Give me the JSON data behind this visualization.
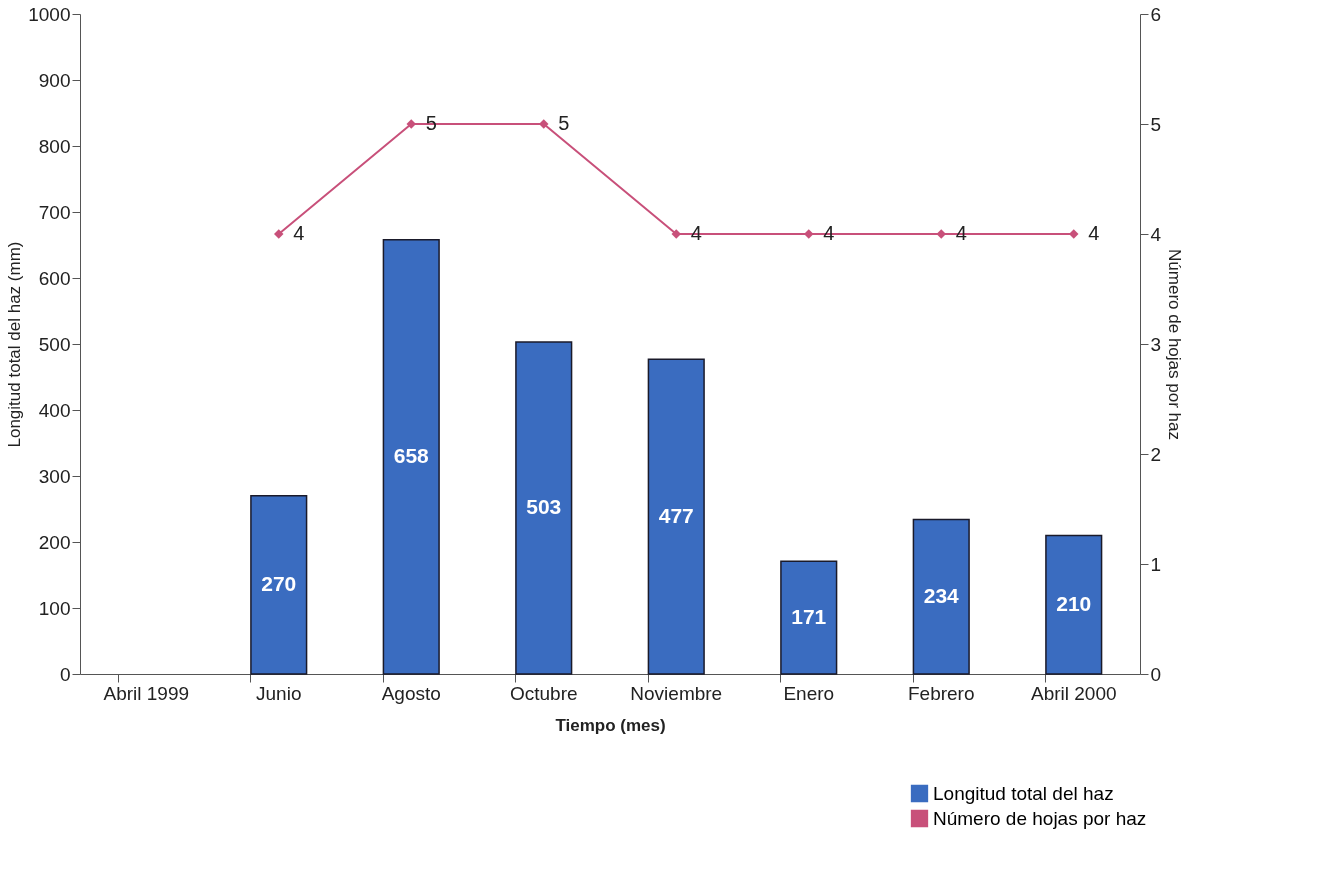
{
  "chart_data": {
    "type": "bar",
    "xlabel": "Tiempo (mes)",
    "ylabel": "Longitud total del haz (mm)",
    "y2label": "Número de hojas por haz",
    "categories": [
      "Abril 1999",
      "Junio",
      "Agosto",
      "Octubre",
      "Noviembre",
      "Enero",
      "Febrero",
      "Abril 2000"
    ],
    "series": [
      {
        "name": "Longitud total del haz",
        "color": "#3a6cc0",
        "values": [
          null,
          270,
          658,
          503,
          477,
          171,
          234,
          210
        ]
      },
      {
        "name": "Número de hojas por haz",
        "type": "line",
        "axis": "y2",
        "color": "#c8507a",
        "values": [
          null,
          4,
          5,
          5,
          4,
          4,
          4,
          4
        ]
      }
    ],
    "ylim": [
      0,
      1000
    ],
    "yticks": [
      0,
      100,
      200,
      300,
      400,
      500,
      600,
      700,
      800,
      900,
      1000
    ],
    "y2lim": [
      0,
      6
    ],
    "y2ticks": [
      0,
      1,
      2,
      3,
      4,
      5,
      6
    ],
    "marker": "diamond",
    "data_labels": true,
    "grid": false,
    "legend": "bottom right"
  }
}
